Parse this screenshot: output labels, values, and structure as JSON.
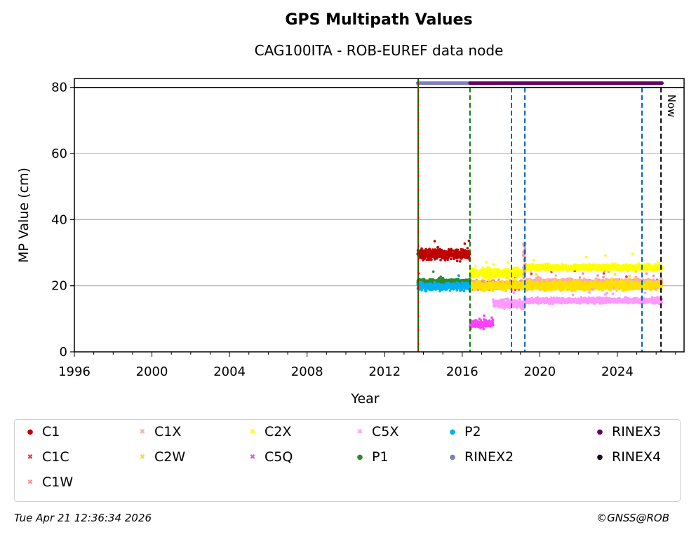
{
  "chart_data": {
    "type": "scatter",
    "title": "GPS Multipath Values",
    "subtitle": "CAG100ITA - ROB-EUREF data node",
    "xlabel": "Year",
    "ylabel": "MP Value (cm)",
    "xlim": [
      1996,
      2027.44
    ],
    "ylim": [
      0,
      82.7
    ],
    "xticks": [
      "1996",
      "2000",
      "2004",
      "2008",
      "2012",
      "2016",
      "2020",
      "2024"
    ],
    "yticks": [
      "0",
      "20",
      "40",
      "60",
      "80"
    ],
    "grid": "horizontal",
    "now_label": "Now",
    "series": [
      {
        "name": "C1",
        "color": "#c00000",
        "marker": "dot",
        "segments": [
          {
            "from": 2013.7,
            "to": 2016.4,
            "mean": 29.5,
            "spread": 1.2
          }
        ]
      },
      {
        "name": "C1C",
        "color": "#ff2a2a",
        "marker": "x",
        "segments": [
          {
            "from": 2016.4,
            "to": 2019.2,
            "mean": 20.0,
            "spread": 0.8
          },
          {
            "from": 2019.2,
            "to": 2026.3,
            "mean": 20.8,
            "spread": 0.6
          }
        ]
      },
      {
        "name": "C1W",
        "color": "#ff9090",
        "marker": "x",
        "segments": [
          {
            "from": 2016.4,
            "to": 2026.3,
            "mean": 20.3,
            "spread": 0.9
          }
        ]
      },
      {
        "name": "C1X",
        "color": "#ffaaaa",
        "marker": "x",
        "segments": [
          {
            "from": 2019.2,
            "to": 2026.3,
            "mean": 21.0,
            "spread": 0.8
          }
        ]
      },
      {
        "name": "C2W",
        "color": "#ffe000",
        "marker": "x",
        "segments": [
          {
            "from": 2016.4,
            "to": 2026.3,
            "mean": 20.0,
            "spread": 1.0
          }
        ]
      },
      {
        "name": "C2X",
        "color": "#ffff00",
        "marker": "x",
        "segments": [
          {
            "from": 2016.4,
            "to": 2019.2,
            "mean": 23.8,
            "spread": 1.0
          },
          {
            "from": 2019.2,
            "to": 2026.3,
            "mean": 25.6,
            "spread": 0.7
          }
        ]
      },
      {
        "name": "C5Q",
        "color": "#ff40ff",
        "marker": "x",
        "segments": [
          {
            "from": 2016.4,
            "to": 2017.6,
            "mean": 8.5,
            "spread": 1.0
          }
        ]
      },
      {
        "name": "C5X",
        "color": "#ff99ff",
        "marker": "x",
        "segments": [
          {
            "from": 2017.6,
            "to": 2019.2,
            "mean": 14.5,
            "spread": 1.0
          },
          {
            "from": 2019.2,
            "to": 2026.3,
            "mean": 15.5,
            "spread": 0.6
          }
        ]
      },
      {
        "name": "P1",
        "color": "#2e8b2e",
        "marker": "dot",
        "segments": [
          {
            "from": 2013.7,
            "to": 2016.4,
            "mean": 21.0,
            "spread": 0.8
          }
        ]
      },
      {
        "name": "P2",
        "color": "#00b0f0",
        "marker": "dot",
        "segments": [
          {
            "from": 2013.7,
            "to": 2016.4,
            "mean": 19.8,
            "spread": 0.9
          }
        ]
      },
      {
        "name": "RINEX2",
        "color": "#8080c0",
        "marker": "dot",
        "bar": {
          "from": 2013.7,
          "to": 2016.4,
          "y": 81.3
        }
      },
      {
        "name": "RINEX3",
        "color": "#660066",
        "marker": "dot",
        "bar": {
          "from": 2016.4,
          "to": 2026.3,
          "y": 81.3
        }
      },
      {
        "name": "RINEX4",
        "color": "#1a0020",
        "marker": "dot"
      }
    ],
    "events": [
      {
        "x": 2013.73,
        "color": "#cc0000"
      },
      {
        "x": 2016.4,
        "color": "#007700"
      },
      {
        "x": 2018.54,
        "color": "#0060c0"
      },
      {
        "x": 2019.23,
        "color": "#0060c0"
      },
      {
        "x": 2025.27,
        "color": "#0060c0"
      },
      {
        "x": 2026.25,
        "color": "#000000"
      }
    ]
  },
  "footer": {
    "timestamp": "Tue Apr 21 12:36:34 2026",
    "copyright": "©GNSS@ROB"
  }
}
